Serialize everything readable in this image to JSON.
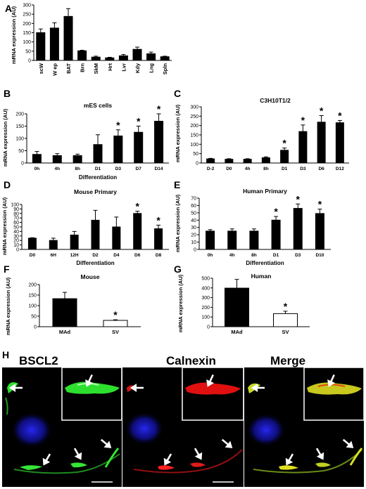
{
  "panel_letters": [
    "A",
    "B",
    "C",
    "D",
    "E",
    "F",
    "G",
    "H"
  ],
  "colors": {
    "bar_fill": "#000000",
    "bar_open": "#ffffff",
    "axis": "#000000",
    "green": "#1fd41f",
    "red": "#e01010",
    "blue": "#1a1ad0",
    "yellow": "#dede20"
  },
  "chart_data": [
    {
      "panel": "A",
      "type": "bar",
      "title": "",
      "xlabel": "",
      "ylabel": "mRNA expression (AU)",
      "ylim": [
        0,
        300
      ],
      "yticks": [
        0,
        50,
        100,
        150,
        200,
        250,
        300
      ],
      "categories": [
        "scW",
        "W ep",
        "BAT",
        "Brn",
        "SkM",
        "Hrt",
        "Lvr",
        "Kdy",
        "Lng",
        "Spln"
      ],
      "values": [
        150,
        175,
        238,
        52,
        18,
        14,
        25,
        60,
        36,
        20
      ],
      "errors": [
        20,
        28,
        42,
        3,
        5,
        3,
        7,
        12,
        9,
        3
      ],
      "sig": [
        false,
        false,
        false,
        false,
        false,
        false,
        false,
        false,
        false,
        false
      ],
      "fill": [
        "black",
        "black",
        "black",
        "black",
        "black",
        "black",
        "black",
        "black",
        "black",
        "black"
      ]
    },
    {
      "panel": "B",
      "type": "bar",
      "title": "mES cells",
      "xlabel": "Differentiation",
      "ylabel": "mRNA expression (AU)",
      "ylim": [
        0,
        200
      ],
      "yticks": [
        0,
        50,
        100,
        150,
        200
      ],
      "categories": [
        "0h",
        "4h",
        "8h",
        "D1",
        "D3",
        "D7",
        "D14"
      ],
      "values": [
        35,
        30,
        30,
        75,
        110,
        125,
        170
      ],
      "errors": [
        12,
        8,
        6,
        40,
        25,
        25,
        30
      ],
      "sig": [
        false,
        false,
        false,
        false,
        true,
        true,
        true
      ],
      "fill": [
        "black",
        "black",
        "black",
        "black",
        "black",
        "black",
        "black"
      ]
    },
    {
      "panel": "C",
      "type": "bar",
      "title": "C3H10T1/2",
      "xlabel": "",
      "ylabel": "mRNA expression (AU)",
      "ylim": [
        0,
        300
      ],
      "yticks": [
        0,
        50,
        100,
        150,
        200,
        250,
        300
      ],
      "categories": [
        "D-2",
        "D0",
        "4h",
        "8h",
        "D1",
        "D3",
        "D6",
        "D12"
      ],
      "values": [
        22,
        20,
        20,
        28,
        68,
        168,
        218,
        215
      ],
      "errors": [
        3,
        3,
        3,
        5,
        12,
        35,
        35,
        12
      ],
      "sig": [
        false,
        false,
        false,
        false,
        true,
        true,
        true,
        true
      ],
      "fill": [
        "black",
        "black",
        "black",
        "black",
        "black",
        "black",
        "black",
        "black"
      ]
    },
    {
      "panel": "D",
      "type": "bar",
      "title": "Mouse Primary",
      "xlabel": "Differentiation",
      "ylabel": "mRNA expression (AU)",
      "ylim": [
        0,
        100
      ],
      "yticks": [
        0,
        10,
        20,
        30,
        40,
        50,
        60,
        70,
        80,
        90,
        100
      ],
      "categories": [
        "D0",
        "6H",
        "12H",
        "D2",
        "D4",
        "D6",
        "D8"
      ],
      "values": [
        25,
        20,
        32,
        65,
        50,
        80,
        46
      ],
      "errors": [
        1,
        5,
        8,
        22,
        22,
        5,
        8
      ],
      "sig": [
        false,
        false,
        false,
        false,
        false,
        true,
        true
      ],
      "fill": [
        "black",
        "black",
        "black",
        "black",
        "black",
        "black",
        "black"
      ]
    },
    {
      "panel": "E",
      "type": "bar",
      "title": "Human Primary",
      "xlabel": "Differentiation",
      "ylabel": "mRNA expression (AU)",
      "ylim": [
        0,
        70
      ],
      "yticks": [
        0,
        10,
        20,
        30,
        40,
        50,
        60,
        70
      ],
      "categories": [
        "0h",
        "4h",
        "8h",
        "D1",
        "D3",
        "D10"
      ],
      "values": [
        25,
        25,
        25,
        40,
        56,
        49
      ],
      "errors": [
        2,
        3,
        3,
        5,
        6,
        6
      ],
      "sig": [
        false,
        false,
        false,
        true,
        true,
        true
      ],
      "fill": [
        "black",
        "black",
        "black",
        "black",
        "black",
        "black"
      ]
    },
    {
      "panel": "F",
      "type": "bar",
      "title": "Mouse",
      "xlabel": "",
      "ylabel": "mRNA expression (AU)",
      "ylim": [
        0,
        200
      ],
      "yticks": [
        0,
        50,
        100,
        150,
        200
      ],
      "categories": [
        "MAd",
        "SV"
      ],
      "values": [
        133,
        30
      ],
      "errors": [
        30,
        3
      ],
      "sig": [
        false,
        true
      ],
      "fill": [
        "black",
        "white"
      ]
    },
    {
      "panel": "G",
      "type": "bar",
      "title": "Human",
      "xlabel": "",
      "ylabel": "mRNA expression (AU)",
      "ylim": [
        0,
        500
      ],
      "yticks": [
        0,
        100,
        200,
        300,
        400,
        500
      ],
      "categories": [
        "MAd",
        "SV"
      ],
      "values": [
        398,
        135
      ],
      "errors": [
        90,
        25
      ],
      "sig": [
        false,
        true
      ],
      "fill": [
        "black",
        "white"
      ]
    }
  ],
  "microscopy": {
    "label": "H",
    "panels": [
      {
        "title": "BSCL2",
        "color": "green"
      },
      {
        "title": "Calnexin",
        "color": "red"
      },
      {
        "title": "Merge",
        "color": "merge"
      }
    ]
  }
}
